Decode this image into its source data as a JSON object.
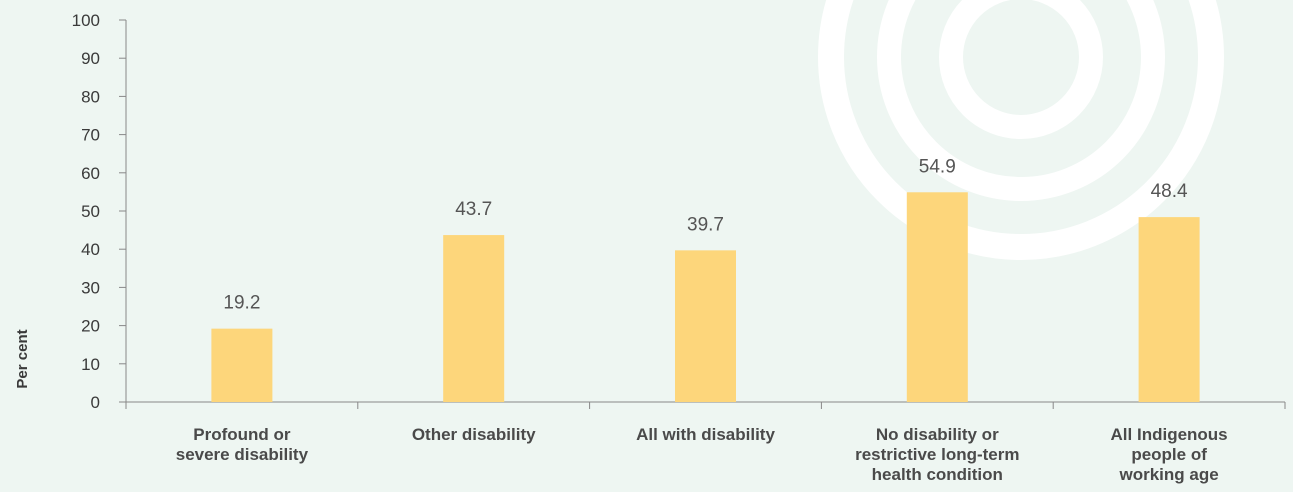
{
  "colors": {
    "background": "#eef6f2",
    "bar": "#fdd67b",
    "axis": "#888888",
    "watermark": "#ffffff"
  },
  "chart_data": {
    "type": "bar",
    "ylabel": "Per cent",
    "xlabel": "",
    "ylim": [
      0,
      100
    ],
    "yticks": [
      0,
      10,
      20,
      30,
      40,
      50,
      60,
      70,
      80,
      90,
      100
    ],
    "grid": false,
    "categories": [
      [
        "Profound or",
        "severe disability"
      ],
      [
        "Other disability"
      ],
      [
        "All with disability"
      ],
      [
        "No disability or",
        "restrictive long-term",
        "health condition"
      ],
      [
        "All Indigenous",
        "people of",
        "working age"
      ]
    ],
    "values": [
      19.2,
      43.7,
      39.7,
      54.9,
      48.4
    ],
    "value_labels": [
      "19.2",
      "43.7",
      "39.7",
      "54.9",
      "48.4"
    ]
  }
}
